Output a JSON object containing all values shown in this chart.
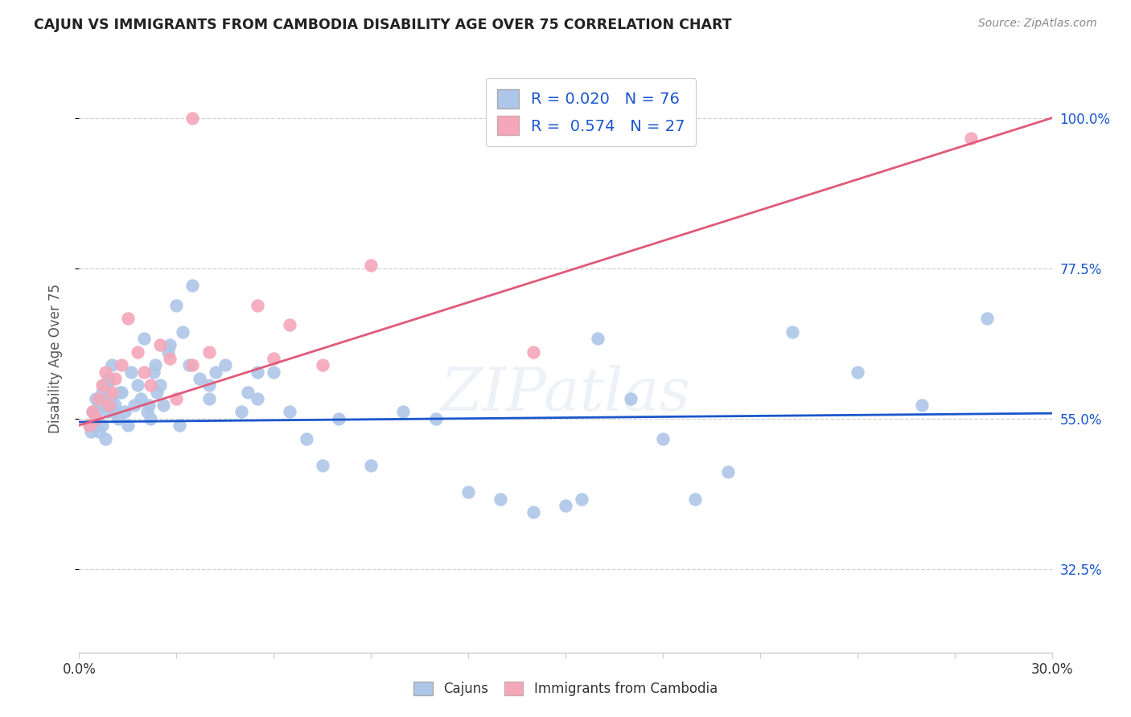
{
  "title": "CAJUN VS IMMIGRANTS FROM CAMBODIA DISABILITY AGE OVER 75 CORRELATION CHART",
  "source": "Source: ZipAtlas.com",
  "ylabel": "Disability Age Over 75",
  "ytick_values": [
    32.5,
    55.0,
    77.5,
    100.0
  ],
  "xmin": 0.0,
  "xmax": 30.0,
  "ymin": 20.0,
  "ymax": 108.0,
  "cajun_color": "#aec6e8",
  "cambodia_color": "#f4a7b9",
  "cajun_line_color": "#1a56cc",
  "cambodia_line_color": "#e05a7a",
  "legend_R1": "0.020",
  "legend_N1": "76",
  "legend_R2": "0.574",
  "legend_N2": "27",
  "watermark": "ZIPatlas",
  "cajun_x": [
    0.3,
    0.4,
    0.5,
    0.5,
    0.6,
    0.6,
    0.7,
    0.7,
    0.8,
    0.8,
    0.9,
    0.9,
    1.0,
    1.0,
    1.1,
    1.2,
    1.3,
    1.4,
    1.5,
    1.6,
    1.7,
    1.8,
    1.9,
    2.0,
    2.1,
    2.2,
    2.3,
    2.4,
    2.5,
    2.6,
    2.8,
    3.0,
    3.2,
    3.4,
    3.5,
    3.7,
    4.0,
    4.0,
    4.2,
    4.5,
    5.0,
    5.2,
    5.5,
    5.5,
    6.0,
    6.5,
    7.0,
    7.5,
    8.0,
    9.0,
    10.0,
    11.0,
    12.0,
    13.0,
    14.0,
    15.0,
    15.5,
    16.0,
    17.0,
    18.0,
    19.0,
    20.0,
    22.0,
    24.0,
    26.0,
    28.0,
    0.35,
    0.55,
    0.75,
    0.85,
    1.05,
    1.25,
    2.15,
    2.35,
    2.75,
    3.1
  ],
  "cajun_y": [
    54,
    56,
    55,
    58,
    53,
    57,
    54,
    59,
    52,
    60,
    56,
    61,
    58,
    63,
    57,
    55,
    59,
    56,
    54,
    62,
    57,
    60,
    58,
    67,
    56,
    55,
    62,
    59,
    60,
    57,
    66,
    72,
    68,
    63,
    75,
    61,
    60,
    58,
    62,
    63,
    56,
    59,
    58,
    62,
    62,
    56,
    52,
    48,
    55,
    48,
    56,
    55,
    44,
    43,
    41,
    42,
    43,
    67,
    58,
    52,
    43,
    47,
    68,
    62,
    57,
    70,
    53,
    56,
    58,
    60,
    56,
    59,
    57,
    63,
    65,
    54
  ],
  "cambodia_x": [
    0.3,
    0.4,
    0.5,
    0.6,
    0.7,
    0.8,
    0.9,
    1.0,
    1.1,
    1.3,
    1.5,
    1.8,
    2.0,
    2.2,
    2.5,
    2.8,
    3.0,
    3.5,
    4.0,
    5.5,
    6.0,
    6.5,
    7.5,
    9.0,
    14.0,
    27.5,
    3.5
  ],
  "cambodia_y": [
    54,
    56,
    55,
    58,
    60,
    62,
    57,
    59,
    61,
    63,
    70,
    65,
    62,
    60,
    66,
    64,
    58,
    63,
    65,
    72,
    64,
    69,
    63,
    78,
    65,
    97,
    100
  ],
  "cajun_line_y0": 54.5,
  "cajun_line_y1": 55.8,
  "cambodia_line_y0": 54.0,
  "cambodia_line_y1": 100.0,
  "grid_color": "#d0d0d0",
  "background_color": "#ffffff"
}
